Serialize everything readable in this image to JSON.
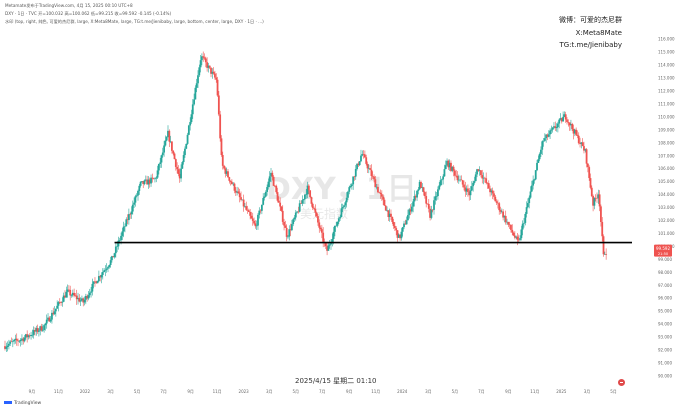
{
  "header": {
    "line1": "Metamate发布于TradingView.com, 4月 15, 2025 00:10 UTC+8",
    "line2": "DXY · 1日 · TVC  开=100.032  高=100.062  低=99.215  收=99.592  -0.145 (-0.14%)",
    "line3": "水印 (top, right, 纯色, 可爱的杰尼群, large, X:Meta8Mate, large, TG:t.me/Jienibaby, large, bottom, center, large, DXY · 1日 · ...)"
  },
  "watermark": {
    "line1": "微博：可爱的杰尼群",
    "line2": "X:Meta8Mate",
    "line3": "TG:t.me/Jienibaby",
    "symbol": "DXY，1日",
    "desc": "美元指数"
  },
  "price_tags": {
    "current": "99.592",
    "sub": "21:50"
  },
  "date_stamp": "2025/4/15 星期二 01:10",
  "footer": {
    "brand": "TradingView"
  },
  "colors": {
    "up": "#26a69a",
    "down": "#ef5350",
    "line": "#000000",
    "tag": "#ef5350"
  },
  "chart_data": {
    "type": "candlestick",
    "y_axis": {
      "ticks": [
        90,
        91,
        92,
        93,
        94,
        95,
        96,
        97,
        98,
        99,
        100,
        101,
        102,
        103,
        104,
        105,
        106,
        107,
        108,
        109,
        110,
        111,
        112,
        113,
        114,
        115,
        116
      ],
      "tick_labels": [
        "90.000",
        "91.000",
        "92.000",
        "93.000",
        "94.000",
        "95.000",
        "96.000",
        "97.000",
        "98.000",
        "99.000",
        "100.000",
        "101.000",
        "102.000",
        "103.000",
        "104.000",
        "105.000",
        "106.000",
        "107.000",
        "108.000",
        "109.000",
        "110.000",
        "111.000",
        "112.000",
        "113.000",
        "114.000",
        "115.000",
        "116.000"
      ],
      "range": [
        89.3,
        117.1
      ]
    },
    "x_axis": {
      "labels": [
        "9月",
        "11月",
        "2022",
        "3月",
        "5月",
        "7月",
        "9月",
        "11月",
        "2023",
        "3月",
        "5月",
        "7月",
        "9月",
        "11月",
        "2024",
        "3月",
        "5月",
        "7月",
        "9月",
        "11月",
        "2025",
        "3月",
        "5月"
      ],
      "range": [
        "2021-07",
        "2025-06"
      ]
    },
    "horizontal_line": 100.3,
    "series_keypoints": [
      [
        "2021-07-01",
        92.3
      ],
      [
        "2021-08-15",
        92.9
      ],
      [
        "2021-10-01",
        93.8
      ],
      [
        "2021-11-24",
        96.5
      ],
      [
        "2021-12-31",
        95.7
      ],
      [
        "2022-01-28",
        97.3
      ],
      [
        "2022-03-07",
        99.0
      ],
      [
        "2022-04-28",
        103.5
      ],
      [
        "2022-05-12",
        104.8
      ],
      [
        "2022-06-15",
        105.2
      ],
      [
        "2022-07-14",
        108.7
      ],
      [
        "2022-08-10",
        105.2
      ],
      [
        "2022-09-28",
        114.7
      ],
      [
        "2022-11-03",
        112.8
      ],
      [
        "2022-11-15",
        106.3
      ],
      [
        "2023-01-31",
        101.5
      ],
      [
        "2023-03-08",
        105.7
      ],
      [
        "2023-04-14",
        100.8
      ],
      [
        "2023-05-31",
        104.5
      ],
      [
        "2023-07-14",
        99.6
      ],
      [
        "2023-10-03",
        107.2
      ],
      [
        "2023-12-28",
        100.6
      ],
      [
        "2024-02-14",
        104.9
      ],
      [
        "2024-03-08",
        102.4
      ],
      [
        "2024-04-16",
        106.5
      ],
      [
        "2024-06-07",
        104.0
      ],
      [
        "2024-06-26",
        106.1
      ],
      [
        "2024-09-27",
        100.2
      ],
      [
        "2024-11-22",
        108.1
      ],
      [
        "2025-01-13",
        110.1
      ],
      [
        "2025-02-28",
        107.3
      ],
      [
        "2025-03-18",
        103.3
      ],
      [
        "2025-03-31",
        104.2
      ],
      [
        "2025-04-11",
        99.2
      ],
      [
        "2025-04-14",
        99.6
      ]
    ]
  }
}
